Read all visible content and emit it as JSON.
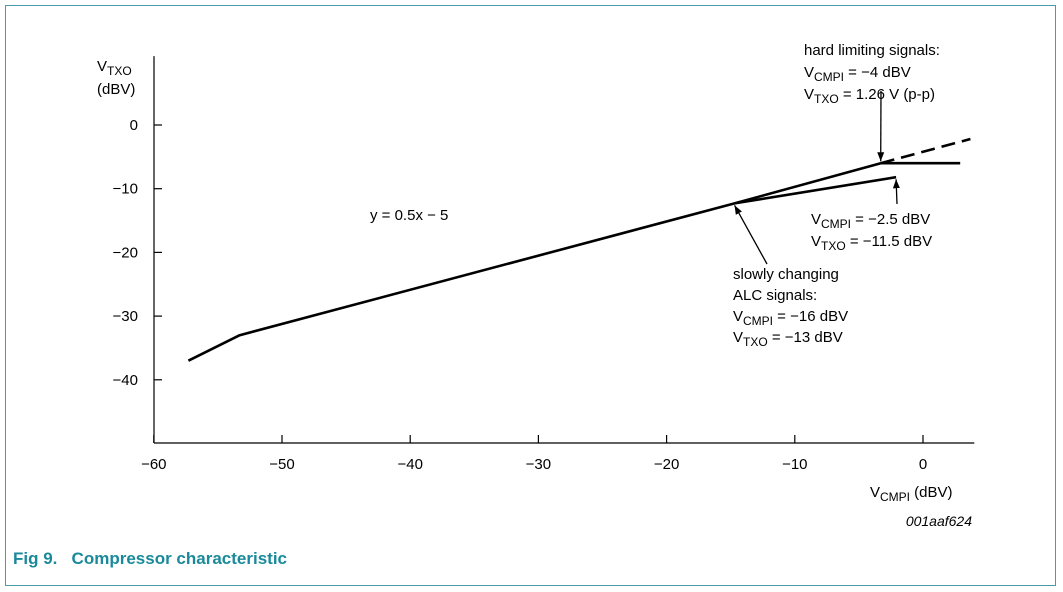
{
  "figure": {
    "caption": "Fig 9.   Compressor characteristic",
    "code": "001aaf624"
  },
  "colors": {
    "caption": "#1a8a9a",
    "frame": "#4a9aa8",
    "line": "#000000"
  },
  "chart_data": {
    "type": "line",
    "title": "",
    "xlabel": {
      "main": "V",
      "sub": "CMPI",
      "unit": " (dBV)"
    },
    "ylabel": {
      "main": "V",
      "sub": "TXO",
      "unit": "(dBV)"
    },
    "xlim": [
      -60,
      4
    ],
    "ylim": [
      -50,
      5
    ],
    "xticks": [
      -60,
      -50,
      -40,
      -30,
      -20,
      -10,
      0
    ],
    "yticks": [
      0,
      -10,
      -20,
      -30,
      -40
    ],
    "tick_labels": {
      "x": [
        "−60",
        "−50",
        "−40",
        "−30",
        "−20",
        "−10",
        "0"
      ],
      "y": [
        "0",
        "−10",
        "−20",
        "−30",
        "−40"
      ]
    },
    "grid": false,
    "series": [
      {
        "style": "solid",
        "points": [
          [
            -57.3,
            -37
          ],
          [
            -53.3,
            -33
          ],
          [
            -14.7,
            -12.3
          ],
          [
            -3.3,
            -6
          ]
        ]
      },
      {
        "style": "dashed",
        "points": [
          [
            -3.3,
            -6
          ],
          [
            3.7,
            -2.2
          ]
        ]
      },
      {
        "style": "solid",
        "points": [
          [
            -3.3,
            -6
          ],
          [
            2.9,
            -6
          ]
        ]
      },
      {
        "style": "solid",
        "points": [
          [
            -14.7,
            -12.3
          ],
          [
            -2.1,
            -8.2
          ]
        ]
      }
    ],
    "annotations": [
      {
        "id": "equation",
        "lines": [
          {
            "text": "y = 0.5x − 5"
          }
        ]
      },
      {
        "id": "hard",
        "lines": [
          {
            "text": "hard limiting signals:"
          },
          {
            "main": "V",
            "sub": "CMPI",
            "rest": " = −4 dBV"
          },
          {
            "main": "V",
            "sub": "TXO",
            "rest": " = 1.26 V (p-p)"
          }
        ],
        "arrow_to": [
          -3.3,
          -6
        ]
      },
      {
        "id": "limit",
        "lines": [
          {
            "main": "V",
            "sub": "CMPI",
            "rest": " = −2.5 dBV"
          },
          {
            "main": "V",
            "sub": "TXO",
            "rest": " = −11.5 dBV"
          }
        ],
        "arrow_to": [
          -2.1,
          -8.2
        ]
      },
      {
        "id": "slow",
        "lines": [
          {
            "text": "slowly changing"
          },
          {
            "text": "ALC signals:"
          },
          {
            "main": "V",
            "sub": "CMPI",
            "rest": " = −16 dBV"
          },
          {
            "main": "V",
            "sub": "TXO",
            "rest": " = −13 dBV"
          }
        ],
        "arrow_to": [
          -14.7,
          -12.3
        ]
      }
    ]
  }
}
